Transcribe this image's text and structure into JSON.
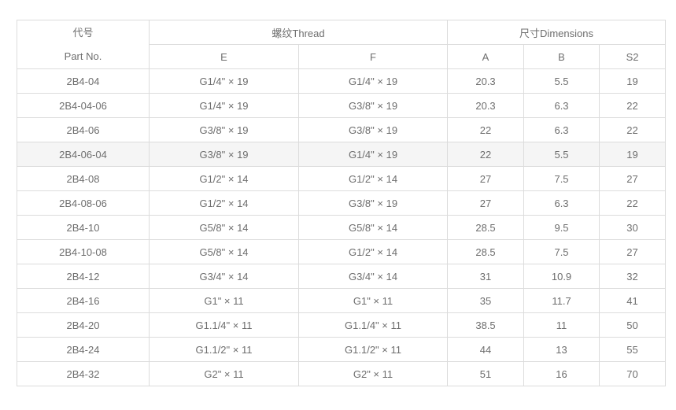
{
  "table": {
    "header": {
      "part_no_zh": "代号",
      "part_no_en": "Part No.",
      "thread_group": "螺纹Thread",
      "dimensions_group": "尺寸Dimensions",
      "col_e": "E",
      "col_f": "F",
      "col_a": "A",
      "col_b": "B",
      "col_s2": "S2"
    },
    "rows": [
      {
        "part": "2B4-04",
        "e": "G1/4\" × 19",
        "f": "G1/4\" × 19",
        "a": "20.3",
        "b": "5.5",
        "s2": "19",
        "highlight": false
      },
      {
        "part": "2B4-04-06",
        "e": "G1/4\" × 19",
        "f": "G3/8\" × 19",
        "a": "20.3",
        "b": "6.3",
        "s2": "22",
        "highlight": false
      },
      {
        "part": "2B4-06",
        "e": "G3/8\" × 19",
        "f": "G3/8\" × 19",
        "a": "22",
        "b": "6.3",
        "s2": "22",
        "highlight": false
      },
      {
        "part": "2B4-06-04",
        "e": "G3/8\" × 19",
        "f": "G1/4\" × 19",
        "a": "22",
        "b": "5.5",
        "s2": "19",
        "highlight": true
      },
      {
        "part": "2B4-08",
        "e": "G1/2\" × 14",
        "f": "G1/2\" × 14",
        "a": "27",
        "b": "7.5",
        "s2": "27",
        "highlight": false
      },
      {
        "part": "2B4-08-06",
        "e": "G1/2\" × 14",
        "f": "G3/8\" × 19",
        "a": "27",
        "b": "6.3",
        "s2": "22",
        "highlight": false
      },
      {
        "part": "2B4-10",
        "e": "G5/8\" × 14",
        "f": "G5/8\" × 14",
        "a": "28.5",
        "b": "9.5",
        "s2": "30",
        "highlight": false
      },
      {
        "part": "2B4-10-08",
        "e": "G5/8\" × 14",
        "f": "G1/2\" × 14",
        "a": "28.5",
        "b": "7.5",
        "s2": "27",
        "highlight": false
      },
      {
        "part": "2B4-12",
        "e": "G3/4\" × 14",
        "f": "G3/4\" × 14",
        "a": "31",
        "b": "10.9",
        "s2": "32",
        "highlight": false
      },
      {
        "part": "2B4-16",
        "e": "G1\" × 11",
        "f": "G1\" × 11",
        "a": "35",
        "b": "11.7",
        "s2": "41",
        "highlight": false
      },
      {
        "part": "2B4-20",
        "e": "G1.1/4\" × 11",
        "f": "G1.1/4\" × 11",
        "a": "38.5",
        "b": "11",
        "s2": "50",
        "highlight": false
      },
      {
        "part": "2B4-24",
        "e": "G1.1/2\" × 11",
        "f": "G1.1/2\" × 11",
        "a": "44",
        "b": "13",
        "s2": "55",
        "highlight": false
      },
      {
        "part": "2B4-32",
        "e": "G2\" × 11",
        "f": "G2\" × 11",
        "a": "51",
        "b": "16",
        "s2": "70",
        "highlight": false
      }
    ],
    "colors": {
      "border": "#dcdcdc",
      "text": "#6e6e6e",
      "highlight_row_bg": "#f5f5f5",
      "page_bg": "#ffffff"
    }
  }
}
